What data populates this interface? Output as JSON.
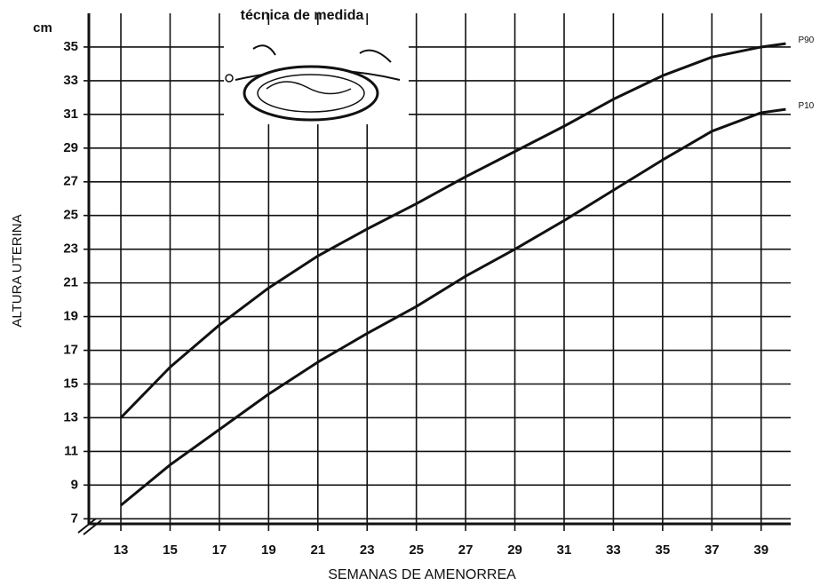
{
  "chart_data": {
    "type": "line",
    "title": "técnica de medida",
    "y_unit": "cm",
    "y_label": "ALTURA UTERINA",
    "x_label": "SEMANAS DE AMENORREA",
    "x": [
      13,
      15,
      17,
      19,
      21,
      23,
      25,
      27,
      29,
      31,
      33,
      35,
      37,
      39,
      40
    ],
    "series": [
      {
        "name": "P90",
        "color": "#111111",
        "values": [
          13,
          16,
          18.5,
          20.7,
          22.6,
          24.2,
          25.7,
          27.3,
          28.8,
          30.3,
          31.9,
          33.3,
          34.4,
          35,
          35.2
        ]
      },
      {
        "name": "P10",
        "color": "#111111",
        "values": [
          7.8,
          10.2,
          12.3,
          14.4,
          16.3,
          18,
          19.6,
          21.4,
          23,
          24.7,
          26.5,
          28.3,
          30,
          31.1,
          31.3
        ]
      }
    ],
    "xlim": [
      11.7,
      40.2
    ],
    "ylim": [
      6.7,
      37
    ],
    "xticks": [
      13,
      15,
      17,
      19,
      21,
      23,
      25,
      27,
      29,
      31,
      33,
      35,
      37,
      39
    ],
    "yticks": [
      7,
      9,
      11,
      13,
      15,
      17,
      19,
      21,
      23,
      25,
      27,
      29,
      31,
      33,
      35
    ],
    "grid": true
  }
}
